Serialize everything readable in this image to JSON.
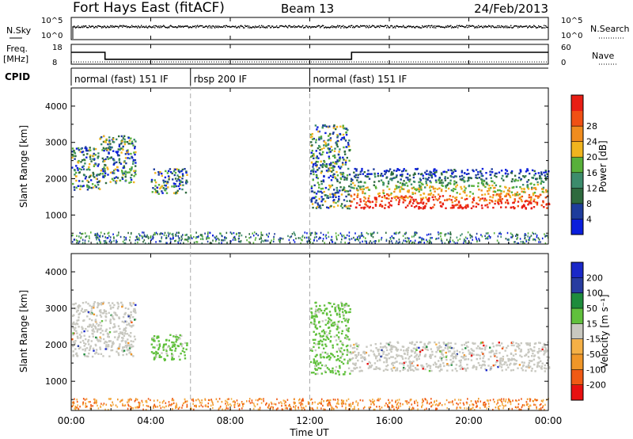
{
  "header": {
    "station": "Fort Hays East (fitACF)",
    "beam": "Beam 13",
    "date": "24/Feb/2013"
  },
  "noise_panel": {
    "left_label": "N.Sky",
    "right_label": "N.Search",
    "tick_top": "10^5",
    "tick_bottom": "10^0"
  },
  "freq_panel": {
    "left_label_1": "Freq.",
    "left_label_2": "[MHz]",
    "left_tick_top": "18",
    "left_tick_bottom": "8",
    "right_label": "Nave",
    "right_tick_top": "60",
    "right_tick_bottom": "0",
    "freq_mhz": [
      [
        0,
        14
      ],
      [
        1.7,
        14
      ],
      [
        1.7,
        10.5
      ],
      [
        14.1,
        10.5
      ],
      [
        14.1,
        14
      ],
      [
        24,
        14
      ]
    ],
    "nave": [
      [
        0,
        7
      ],
      [
        24,
        7
      ]
    ]
  },
  "cpid": {
    "label": "CPID",
    "segments": [
      {
        "start": 0,
        "end": 6,
        "label": "normal (fast) 151 IF"
      },
      {
        "start": 6,
        "end": 12,
        "label": "rbsp 200 IF"
      },
      {
        "start": 12,
        "end": 24,
        "label": "normal (fast) 151 IF"
      }
    ]
  },
  "colors": {
    "power": [
      "#0a1edc",
      "#1e3c9c",
      "#2e6a3e",
      "#3c8c6c",
      "#58b03a",
      "#f0b41e",
      "#f08c1e",
      "#f05014",
      "#e81e14"
    ],
    "velocity": [
      "#e81010",
      "#f05a14",
      "#f09628",
      "#f5b046",
      "#c8c8c0",
      "#60c03c",
      "#1e8c3c",
      "#283ca0",
      "#1a28c8"
    ]
  },
  "chart_data": [
    {
      "type": "heatmap",
      "name_field": "Power",
      "ylabel": "Slant Range [km]",
      "yticks": [
        1000,
        2000,
        3000,
        4000
      ],
      "ylim": [
        200,
        4500
      ],
      "colorbar_label": "Power [dB]",
      "colorbar_ticks": [
        "4",
        "8",
        "12",
        "16",
        "20",
        "24",
        "28"
      ],
      "scatter_regions": [
        {
          "x": [
            0.0,
            1.4
          ],
          "y": [
            1700,
            2900
          ],
          "level": "mixed"
        },
        {
          "x": [
            1.4,
            3.2
          ],
          "y": [
            1900,
            3200
          ],
          "level": "mixed"
        },
        {
          "x": [
            4.0,
            5.8
          ],
          "y": [
            1600,
            2300
          ],
          "level": "mixed"
        },
        {
          "x": [
            14.0,
            24.0
          ],
          "y": [
            1200,
            2300
          ],
          "level": "strong"
        },
        {
          "x": [
            12.0,
            14.0
          ],
          "y": [
            1200,
            3500
          ],
          "level": "mixed"
        }
      ]
    },
    {
      "type": "heatmap",
      "name_field": "Velocity",
      "ylabel": "Slant Range [km]",
      "yticks": [
        1000,
        2000,
        3000,
        4000
      ],
      "ylim": [
        200,
        4500
      ],
      "colorbar_label": "Velocity [m s⁻¹]",
      "colorbar_ticks": [
        "200",
        "100",
        "50",
        "15",
        "-15",
        "-50",
        "-100",
        "-200"
      ],
      "scatter_regions": [
        {
          "x": [
            0.0,
            3.2
          ],
          "y": [
            1700,
            3200
          ],
          "level": "ground"
        },
        {
          "x": [
            4.0,
            5.8
          ],
          "y": [
            1600,
            2300
          ],
          "level": "green"
        },
        {
          "x": [
            12.0,
            14.0
          ],
          "y": [
            1200,
            3200
          ],
          "level": "green"
        },
        {
          "x": [
            14.0,
            24.0
          ],
          "y": [
            1300,
            2100
          ],
          "level": "ground"
        }
      ]
    }
  ],
  "x_axis": {
    "label": "Time UT",
    "ticks": [
      "00:00",
      "04:00",
      "08:00",
      "12:00",
      "16:00",
      "20:00",
      "00:00"
    ]
  }
}
